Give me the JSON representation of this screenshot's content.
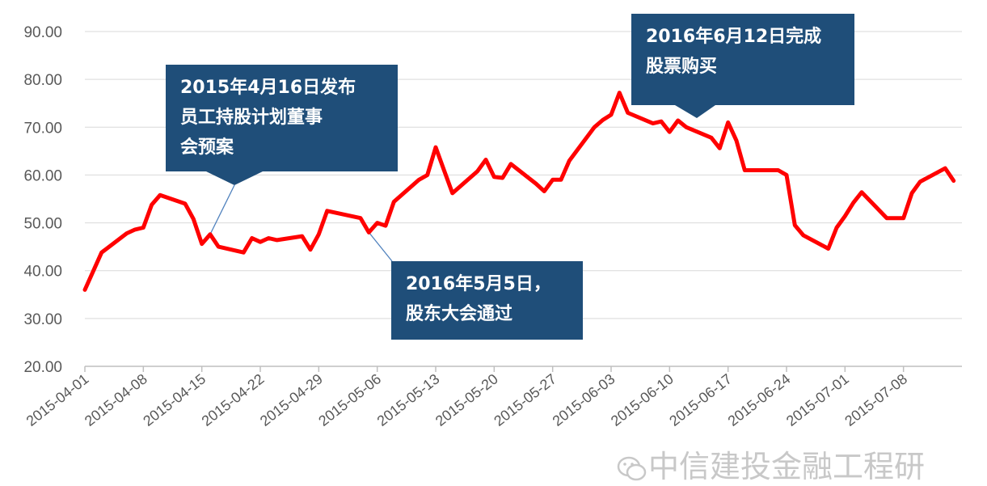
{
  "chart_data": {
    "type": "line",
    "title": "",
    "xlabel": "",
    "ylabel": "",
    "ylim": [
      20,
      90
    ],
    "y_ticks": [
      "20.00",
      "30.00",
      "40.00",
      "50.00",
      "60.00",
      "70.00",
      "80.00",
      "90.00"
    ],
    "x_ticks": [
      "2015-04-01",
      "2015-04-08",
      "2015-04-15",
      "2015-04-22",
      "2015-04-29",
      "2015-05-06",
      "2015-05-13",
      "2015-05-20",
      "2015-05-27",
      "2015-06-03",
      "2015-06-10",
      "2015-06-17",
      "2015-06-24",
      "2015-07-01",
      "2015-07-08"
    ],
    "grid": true,
    "series": [
      {
        "color": "#ff0000",
        "points": [
          [
            "2015-04-01",
            36.0
          ],
          [
            "2015-04-03",
            43.8
          ],
          [
            "2015-04-06",
            47.8
          ],
          [
            "2015-04-07",
            48.6
          ],
          [
            "2015-04-08",
            49.0
          ],
          [
            "2015-04-09",
            53.8
          ],
          [
            "2015-04-10",
            55.8
          ],
          [
            "2015-04-13",
            54.0
          ],
          [
            "2015-04-14",
            50.8
          ],
          [
            "2015-04-15",
            45.6
          ],
          [
            "2015-04-16",
            47.6
          ],
          [
            "2015-04-17",
            45.0
          ],
          [
            "2015-04-20",
            43.8
          ],
          [
            "2015-04-21",
            46.8
          ],
          [
            "2015-04-22",
            46.0
          ],
          [
            "2015-04-23",
            46.8
          ],
          [
            "2015-04-24",
            46.4
          ],
          [
            "2015-04-27",
            47.2
          ],
          [
            "2015-04-28",
            44.4
          ],
          [
            "2015-04-29",
            47.6
          ],
          [
            "2015-04-30",
            52.5
          ],
          [
            "2015-05-04",
            51.0
          ],
          [
            "2015-05-05",
            48.0
          ],
          [
            "2015-05-06",
            50.0
          ],
          [
            "2015-05-07",
            49.4
          ],
          [
            "2015-05-08",
            54.4
          ],
          [
            "2015-05-11",
            59.0
          ],
          [
            "2015-05-12",
            60.0
          ],
          [
            "2015-05-13",
            65.8
          ],
          [
            "2015-05-14",
            61.0
          ],
          [
            "2015-05-15",
            56.2
          ],
          [
            "2015-05-18",
            60.8
          ],
          [
            "2015-05-19",
            63.2
          ],
          [
            "2015-05-20",
            59.6
          ],
          [
            "2015-05-21",
            59.4
          ],
          [
            "2015-05-22",
            62.3
          ],
          [
            "2015-05-25",
            58.2
          ],
          [
            "2015-05-26",
            56.6
          ],
          [
            "2015-05-27",
            59.0
          ],
          [
            "2015-05-28",
            59.0
          ],
          [
            "2015-05-29",
            63.0
          ],
          [
            "2015-06-01",
            70.0
          ],
          [
            "2015-06-02",
            71.5
          ],
          [
            "2015-06-03",
            72.6
          ],
          [
            "2015-06-04",
            77.2
          ],
          [
            "2015-06-05",
            73.0
          ],
          [
            "2015-06-08",
            70.8
          ],
          [
            "2015-06-09",
            71.2
          ],
          [
            "2015-06-10",
            69.0
          ],
          [
            "2015-06-11",
            71.4
          ],
          [
            "2015-06-12",
            70.0
          ],
          [
            "2015-06-15",
            67.8
          ],
          [
            "2015-06-16",
            65.6
          ],
          [
            "2015-06-17",
            71.0
          ],
          [
            "2015-06-18",
            67.2
          ],
          [
            "2015-06-19",
            61.0
          ],
          [
            "2015-06-22",
            61.0
          ],
          [
            "2015-06-23",
            61.0
          ],
          [
            "2015-06-24",
            60.0
          ],
          [
            "2015-06-25",
            49.5
          ],
          [
            "2015-06-26",
            47.4
          ],
          [
            "2015-06-29",
            44.6
          ],
          [
            "2015-06-30",
            49.0
          ],
          [
            "2015-07-01",
            51.4
          ],
          [
            "2015-07-02",
            54.2
          ],
          [
            "2015-07-03",
            56.4
          ],
          [
            "2015-07-06",
            51.0
          ],
          [
            "2015-07-07",
            51.0
          ],
          [
            "2015-07-08",
            51.0
          ],
          [
            "2015-07-09",
            56.2
          ],
          [
            "2015-07-10",
            58.6
          ],
          [
            "2015-07-13",
            61.4
          ],
          [
            "2015-07-14",
            58.8
          ]
        ]
      }
    ],
    "annotations": [
      {
        "text_lines": [
          "2015年4月16日发布",
          "员工持股计划董事",
          "会预案"
        ],
        "target": "2015-04-16"
      },
      {
        "text_lines": [
          "2016年5月5日，",
          "股东大会通过"
        ],
        "target": "2015-05-05"
      },
      {
        "text_lines": [
          "2016年6月12日完成",
          "股票购买"
        ],
        "target": "2015-06-12"
      }
    ]
  },
  "watermark": "中信建投金融工程研"
}
